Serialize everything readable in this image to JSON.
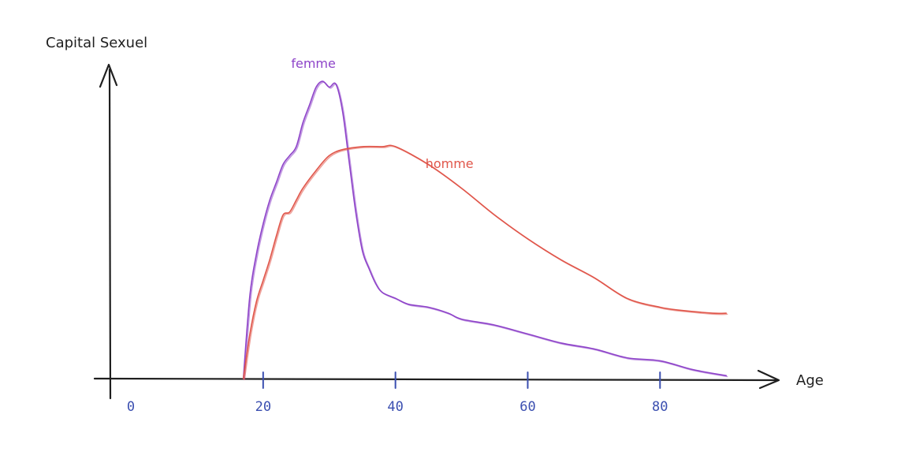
{
  "chart_data": {
    "type": "line",
    "xlabel": "Age",
    "ylabel": "Capital Sexuel",
    "xlim": [
      0,
      92
    ],
    "ylim": [
      0,
      100
    ],
    "x_ticks": [
      0,
      20,
      40,
      60,
      80
    ],
    "x_tick_labels": [
      "0",
      "20",
      "40",
      "60",
      "80"
    ],
    "series": [
      {
        "name": "femme",
        "color": "#8e44c9",
        "x": [
          17,
          18,
          19,
          20,
          21,
          22,
          23,
          24,
          25,
          26,
          27,
          28,
          29,
          30,
          31,
          32,
          33,
          34,
          35,
          36,
          37,
          38,
          40,
          42,
          45,
          48,
          50,
          55,
          60,
          65,
          70,
          75,
          80,
          85,
          90
        ],
        "y": [
          0,
          28,
          42,
          52,
          60,
          66,
          72,
          75,
          78,
          86,
          92,
          98,
          100,
          98,
          99,
          90,
          73,
          56,
          43,
          37,
          32,
          29,
          27,
          25,
          24,
          22,
          20,
          18,
          15,
          12,
          10,
          7,
          6,
          3,
          1
        ]
      },
      {
        "name": "homme",
        "color": "#e0564a",
        "x": [
          17,
          18,
          19,
          20,
          21,
          22,
          23,
          24,
          25,
          26,
          28,
          30,
          32,
          35,
          38,
          40,
          45,
          50,
          55,
          60,
          65,
          70,
          75,
          80,
          83,
          88,
          90
        ],
        "y": [
          0,
          15,
          26,
          33,
          40,
          48,
          55,
          56,
          60,
          64,
          70,
          75,
          77,
          78,
          78,
          78,
          72,
          64,
          55,
          47,
          40,
          34,
          27,
          24,
          23,
          22,
          22
        ]
      }
    ]
  }
}
